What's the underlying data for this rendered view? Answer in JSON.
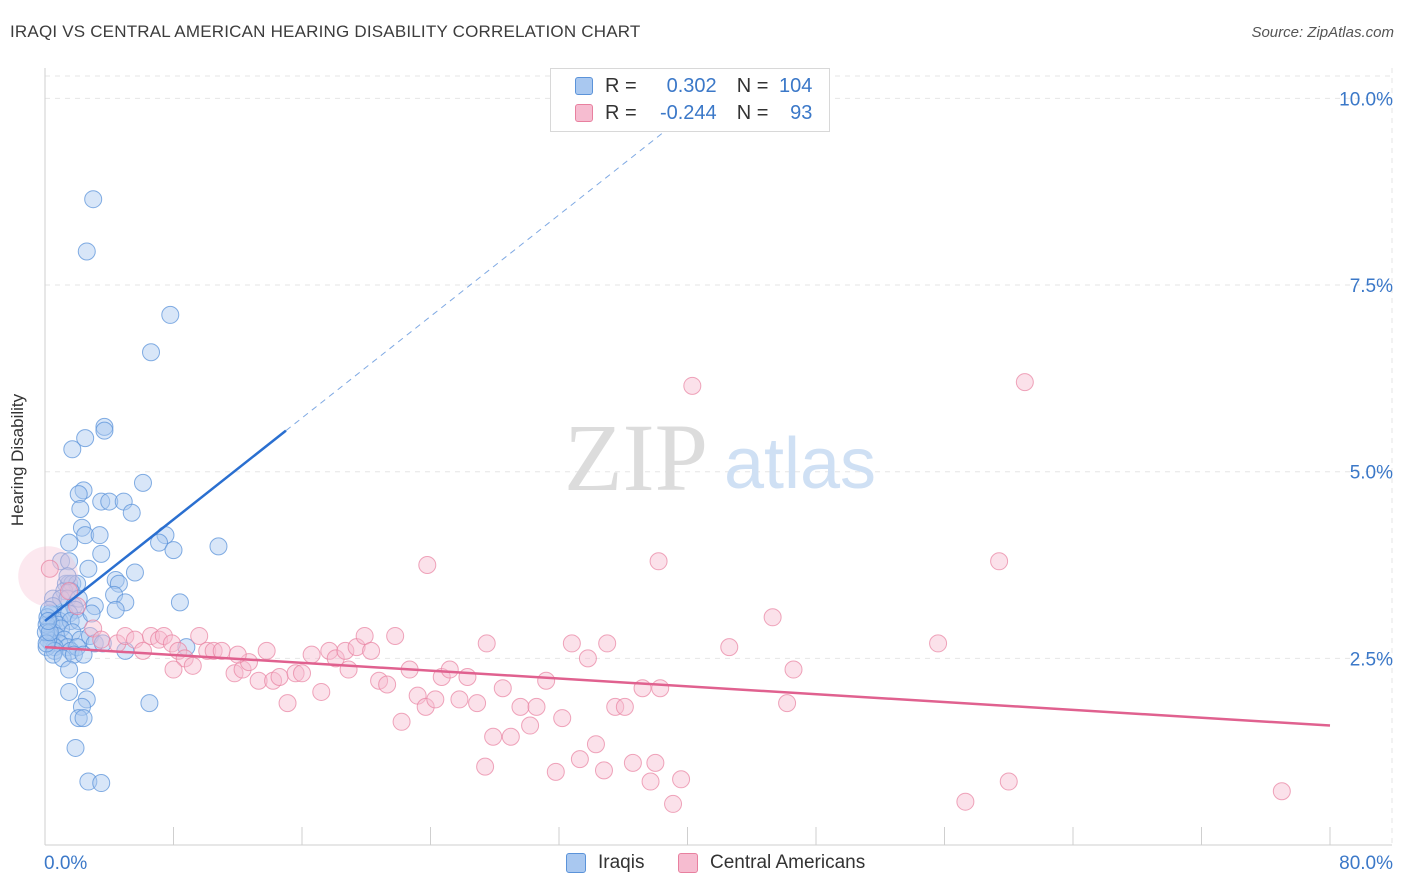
{
  "title": "IRAQI VS CENTRAL AMERICAN HEARING DISABILITY CORRELATION CHART",
  "source": "Source: ZipAtlas.com",
  "watermark": {
    "zip": "ZIP",
    "atlas": "atlas"
  },
  "legend": {
    "r_label": "R =",
    "n_label": "N =",
    "series": [
      {
        "r": "0.302",
        "n": "104"
      },
      {
        "r": "-0.244",
        "n": "93"
      }
    ]
  },
  "colors": {
    "blue_fill": "#a9c8f0",
    "blue_stroke": "#5b93d9",
    "blue_line": "#2a6fd0",
    "pink_fill": "#f6bcd0",
    "pink_stroke": "#e8809f",
    "pink_line": "#e0618f",
    "axis_text": "#3b78c8",
    "grid": "#e6e6e6"
  },
  "chart_data": {
    "type": "scatter",
    "title": "IRAQI VS CENTRAL AMERICAN HEARING DISABILITY CORRELATION CHART",
    "xlabel": "",
    "ylabel": "Hearing Disability",
    "xlim": [
      0,
      80
    ],
    "ylim": [
      0,
      10.3
    ],
    "x_tick_labels": [
      "0.0%",
      "80.0%"
    ],
    "y_ticks": [
      2.5,
      5.0,
      7.5,
      10.0
    ],
    "y_tick_labels": [
      "2.5%",
      "5.0%",
      "7.5%",
      "10.0%"
    ],
    "grid": true,
    "legend_position": "top-center",
    "series": [
      {
        "name": "Iraqis",
        "r": 0.302,
        "n": 104,
        "trend": {
          "x0": 0,
          "y0": 3.0,
          "x1": 15,
          "y1": 5.55,
          "extend_to_x": 40
        },
        "points": [
          [
            3.0,
            8.65
          ],
          [
            2.6,
            7.95
          ],
          [
            7.8,
            7.1
          ],
          [
            6.6,
            6.6
          ],
          [
            3.7,
            5.6
          ],
          [
            3.7,
            5.55
          ],
          [
            1.7,
            5.3
          ],
          [
            2.5,
            5.45
          ],
          [
            6.1,
            4.85
          ],
          [
            2.4,
            4.75
          ],
          [
            2.1,
            4.7
          ],
          [
            3.5,
            4.6
          ],
          [
            4.0,
            4.6
          ],
          [
            4.9,
            4.6
          ],
          [
            5.4,
            4.45
          ],
          [
            2.2,
            4.5
          ],
          [
            2.3,
            4.25
          ],
          [
            2.5,
            4.15
          ],
          [
            3.4,
            4.15
          ],
          [
            7.5,
            4.15
          ],
          [
            7.1,
            4.05
          ],
          [
            10.8,
            4.0
          ],
          [
            1.5,
            4.05
          ],
          [
            8.0,
            3.95
          ],
          [
            3.5,
            3.9
          ],
          [
            1.0,
            3.8
          ],
          [
            1.5,
            3.8
          ],
          [
            2.7,
            3.7
          ],
          [
            5.6,
            3.65
          ],
          [
            1.3,
            3.5
          ],
          [
            1.5,
            3.5
          ],
          [
            1.7,
            3.5
          ],
          [
            2.0,
            3.5
          ],
          [
            1.2,
            3.4
          ],
          [
            1.6,
            3.4
          ],
          [
            1.4,
            3.6
          ],
          [
            4.4,
            3.55
          ],
          [
            4.6,
            3.5
          ],
          [
            0.5,
            3.3
          ],
          [
            1.0,
            3.3
          ],
          [
            1.4,
            3.3
          ],
          [
            1.8,
            3.2
          ],
          [
            2.1,
            3.3
          ],
          [
            3.1,
            3.2
          ],
          [
            0.5,
            3.2
          ],
          [
            1.2,
            3.1
          ],
          [
            1.9,
            3.15
          ],
          [
            4.3,
            3.35
          ],
          [
            5.0,
            3.25
          ],
          [
            8.4,
            3.25
          ],
          [
            0.3,
            3.1
          ],
          [
            0.6,
            3.0
          ],
          [
            0.9,
            3.0
          ],
          [
            1.5,
            3.1
          ],
          [
            0.4,
            2.95
          ],
          [
            0.8,
            2.95
          ],
          [
            1.6,
            3.0
          ],
          [
            2.1,
            3.0
          ],
          [
            2.9,
            3.1
          ],
          [
            4.4,
            3.15
          ],
          [
            0.2,
            2.9
          ],
          [
            0.5,
            2.85
          ],
          [
            1.0,
            2.9
          ],
          [
            1.7,
            2.85
          ],
          [
            0.3,
            2.8
          ],
          [
            0.7,
            2.8
          ],
          [
            1.2,
            2.75
          ],
          [
            0.4,
            2.7
          ],
          [
            0.9,
            2.7
          ],
          [
            1.4,
            2.65
          ],
          [
            0.6,
            2.65
          ],
          [
            2.2,
            2.75
          ],
          [
            2.8,
            2.8
          ],
          [
            0.2,
            2.75
          ],
          [
            0.1,
            2.65
          ],
          [
            0.6,
            2.6
          ],
          [
            1.6,
            2.6
          ],
          [
            2.0,
            2.65
          ],
          [
            3.1,
            2.7
          ],
          [
            3.6,
            2.7
          ],
          [
            5.0,
            2.6
          ],
          [
            8.8,
            2.65
          ],
          [
            0.5,
            2.55
          ],
          [
            1.1,
            2.5
          ],
          [
            1.8,
            2.55
          ],
          [
            2.4,
            2.55
          ],
          [
            1.5,
            2.35
          ],
          [
            2.5,
            2.2
          ],
          [
            1.5,
            2.05
          ],
          [
            2.6,
            1.95
          ],
          [
            6.5,
            1.9
          ],
          [
            2.3,
            1.85
          ],
          [
            2.1,
            1.7
          ],
          [
            2.4,
            1.7
          ],
          [
            1.9,
            1.3
          ],
          [
            2.7,
            0.85
          ],
          [
            3.5,
            0.83
          ],
          [
            0.1,
            2.95
          ],
          [
            0.15,
            3.05
          ],
          [
            0.05,
            2.85
          ],
          [
            0.25,
            3.15
          ],
          [
            0.1,
            2.7
          ],
          [
            0.3,
            2.85
          ],
          [
            0.2,
            3.0
          ]
        ]
      },
      {
        "name": "Central Americans",
        "r": -0.244,
        "n": 93,
        "trend": {
          "x0": 0,
          "y0": 2.65,
          "x1": 80,
          "y1": 1.6
        },
        "points": [
          [
            0.3,
            3.7
          ],
          [
            1.5,
            3.4
          ],
          [
            2.0,
            3.2
          ],
          [
            3.0,
            2.9
          ],
          [
            3.5,
            2.75
          ],
          [
            4.5,
            2.7
          ],
          [
            5.0,
            2.8
          ],
          [
            5.6,
            2.75
          ],
          [
            6.1,
            2.6
          ],
          [
            6.6,
            2.8
          ],
          [
            7.1,
            2.75
          ],
          [
            7.4,
            2.8
          ],
          [
            7.9,
            2.7
          ],
          [
            8.3,
            2.6
          ],
          [
            8.7,
            2.5
          ],
          [
            9.2,
            2.4
          ],
          [
            9.6,
            2.8
          ],
          [
            10.1,
            2.6
          ],
          [
            10.5,
            2.6
          ],
          [
            11.0,
            2.6
          ],
          [
            11.8,
            2.3
          ],
          [
            12.3,
            2.35
          ],
          [
            12.7,
            2.45
          ],
          [
            13.3,
            2.2
          ],
          [
            13.8,
            2.6
          ],
          [
            14.2,
            2.2
          ],
          [
            14.6,
            2.25
          ],
          [
            15.1,
            1.9
          ],
          [
            15.6,
            2.3
          ],
          [
            16.0,
            2.3
          ],
          [
            16.6,
            2.55
          ],
          [
            17.2,
            2.05
          ],
          [
            17.7,
            2.6
          ],
          [
            18.1,
            2.5
          ],
          [
            18.7,
            2.6
          ],
          [
            18.9,
            2.35
          ],
          [
            19.4,
            2.65
          ],
          [
            19.9,
            2.8
          ],
          [
            20.3,
            2.6
          ],
          [
            20.8,
            2.2
          ],
          [
            21.3,
            2.15
          ],
          [
            21.8,
            2.8
          ],
          [
            22.2,
            1.65
          ],
          [
            22.7,
            2.35
          ],
          [
            23.2,
            2.0
          ],
          [
            23.7,
            1.85
          ],
          [
            24.3,
            1.95
          ],
          [
            24.7,
            2.25
          ],
          [
            25.2,
            2.35
          ],
          [
            25.8,
            1.95
          ],
          [
            26.3,
            2.25
          ],
          [
            26.9,
            1.9
          ],
          [
            27.4,
            1.05
          ],
          [
            27.9,
            1.45
          ],
          [
            28.5,
            2.1
          ],
          [
            29.0,
            1.45
          ],
          [
            29.6,
            1.85
          ],
          [
            30.2,
            1.6
          ],
          [
            30.6,
            1.85
          ],
          [
            31.2,
            2.2
          ],
          [
            31.8,
            0.98
          ],
          [
            32.2,
            1.7
          ],
          [
            32.8,
            2.7
          ],
          [
            33.3,
            1.15
          ],
          [
            33.8,
            2.5
          ],
          [
            34.3,
            1.35
          ],
          [
            34.8,
            1.0
          ],
          [
            35.5,
            1.85
          ],
          [
            36.1,
            1.85
          ],
          [
            36.6,
            1.1
          ],
          [
            37.2,
            2.1
          ],
          [
            37.7,
            0.85
          ],
          [
            38.0,
            1.1
          ],
          [
            38.3,
            2.1
          ],
          [
            39.1,
            0.55
          ],
          [
            39.6,
            0.88
          ],
          [
            40.3,
            6.15
          ],
          [
            42.6,
            2.65
          ],
          [
            45.3,
            3.05
          ],
          [
            46.2,
            1.9
          ],
          [
            46.6,
            2.35
          ],
          [
            23.8,
            3.75
          ],
          [
            38.2,
            3.8
          ],
          [
            59.4,
            3.8
          ],
          [
            61.0,
            6.2
          ],
          [
            55.6,
            2.7
          ],
          [
            60.0,
            0.85
          ],
          [
            57.3,
            0.58
          ],
          [
            77.0,
            0.72
          ],
          [
            27.5,
            2.7
          ],
          [
            35.0,
            2.7
          ],
          [
            12.0,
            2.55
          ],
          [
            8.0,
            2.35
          ]
        ]
      }
    ]
  },
  "bottom_legend": [
    "Iraqis",
    "Central Americans"
  ]
}
